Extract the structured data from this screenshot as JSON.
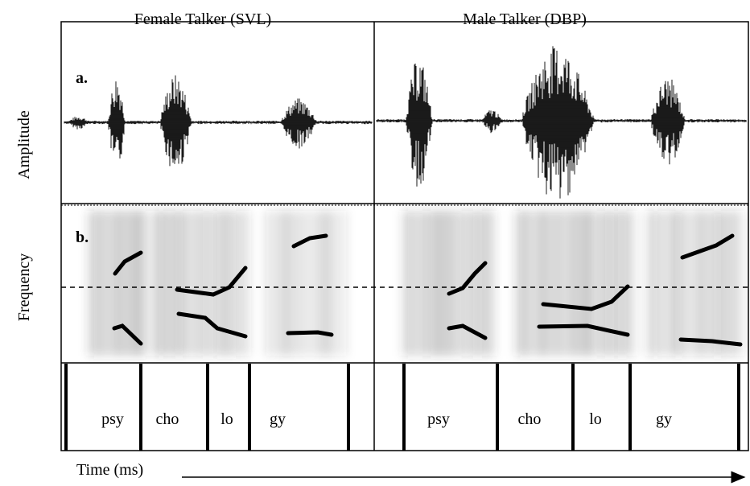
{
  "columns": [
    "Female Talker (SVL)",
    "Male Talker (DBP)"
  ],
  "rows": {
    "amplitude": "Amplitude",
    "frequency": "Frequency"
  },
  "panels": [
    "a.",
    "b."
  ],
  "syllables": {
    "female": [
      "psy",
      "cho",
      "lo",
      "gy"
    ],
    "male": [
      "psy",
      "cho",
      "lo",
      "gy"
    ]
  },
  "time_axis": "Time (ms)"
}
